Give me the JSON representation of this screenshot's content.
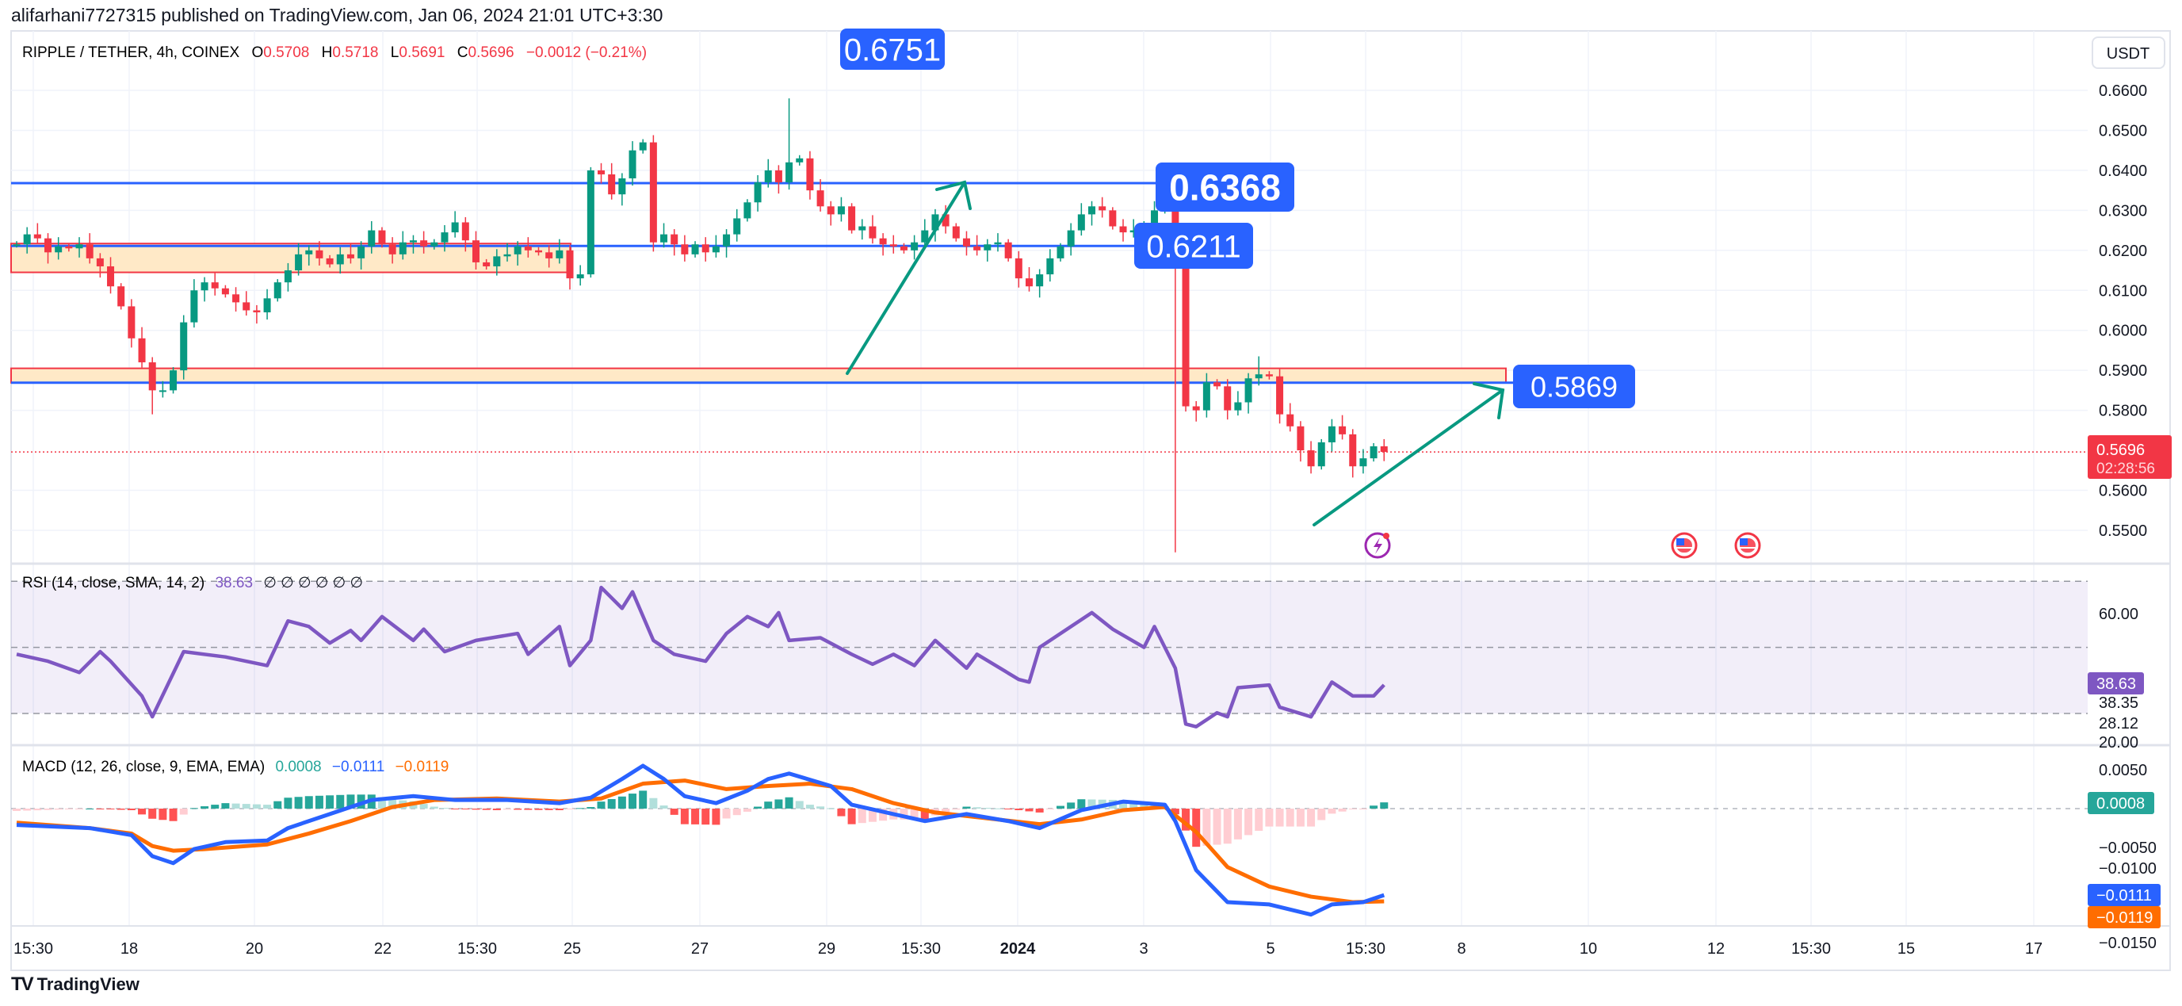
{
  "header": {
    "published": "alifarhani7727315 published on TradingView.com, Jan 06, 2024 21:01 UTC+3:30"
  },
  "legend": {
    "symbol": "RIPPLE / TETHER, 4h, COINEX",
    "o_label": "O",
    "o": "0.5708",
    "h_label": "H",
    "h": "0.5718",
    "l_label": "L",
    "l": "0.5691",
    "c_label": "C",
    "c": "0.5696",
    "change": "−0.0012 (−0.21%)"
  },
  "currency_button": "USDT",
  "last_price": {
    "value": "0.5696",
    "countdown": "02:28:56"
  },
  "annotations": {
    "labels": [
      "0.6751",
      "0.6368",
      "0.6211",
      "0.5869"
    ],
    "levels": [
      0.6368,
      0.6211,
      0.5869
    ],
    "zones": [
      [
        0.6145,
        0.6217
      ],
      [
        0.5869,
        0.5905
      ]
    ]
  },
  "price_axis": [
    "0.6600",
    "0.6500",
    "0.6400",
    "0.6300",
    "0.6200",
    "0.6100",
    "0.6000",
    "0.5900",
    "0.5800",
    "0.5600",
    "0.5500"
  ],
  "time_axis": [
    "15:30",
    "18",
    "20",
    "22",
    "15:30",
    "25",
    "27",
    "29",
    "15:30",
    "2024",
    "3",
    "5",
    "15:30",
    "8",
    "10",
    "12",
    "15:30",
    "15",
    "17"
  ],
  "rsi": {
    "title": "RSI (14, close, SMA, 14, 2)",
    "value": "38.63",
    "na": "∅ ∅ ∅ ∅ ∅ ∅",
    "axis": [
      "60.00",
      "38.35",
      "28.12",
      "20.00"
    ]
  },
  "macd": {
    "title": "MACD (12, 26, close, 9, EMA, EMA)",
    "hist": "0.0008",
    "macd": "−0.0111",
    "signal": "−0.0119",
    "axis": [
      "0.0050",
      "−0.0050",
      "−0.0100",
      "−0.0150"
    ]
  },
  "footer": {
    "brand": "TradingView",
    "logo": "TV"
  },
  "icons": [
    "lightning-event-icon",
    "us-flag-event-icon",
    "us-flag-event-icon"
  ],
  "colors": {
    "up": "#089981",
    "down": "#f23645",
    "level_line": "#2962ff",
    "label_bg": "#2962ff",
    "zone_fill": "#ffe9c7",
    "zone_border": "#f23645",
    "arrow": "#089981",
    "rsi": "#7e57c2",
    "macd": "#2962ff",
    "signal": "#ff6d00",
    "hist_up": "#26a69a",
    "hist_up_light": "#b2dfdb",
    "hist_down": "#ff5252",
    "hist_down_light": "#ffcdd2"
  },
  "chart_data": {
    "type": "candlestick",
    "interval": "4h",
    "ylim": [
      0.545,
      0.668
    ],
    "closes": [
      0.6215,
      0.624,
      0.623,
      0.6195,
      0.621,
      0.6205,
      0.6215,
      0.618,
      0.616,
      0.611,
      0.606,
      0.598,
      0.592,
      0.585,
      0.585,
      0.59,
      0.602,
      0.61,
      0.612,
      0.6105,
      0.609,
      0.607,
      0.605,
      0.6045,
      0.608,
      0.612,
      0.615,
      0.619,
      0.62,
      0.618,
      0.6165,
      0.619,
      0.618,
      0.621,
      0.625,
      0.6215,
      0.619,
      0.622,
      0.6225,
      0.621,
      0.622,
      0.6245,
      0.627,
      0.6225,
      0.617,
      0.616,
      0.6185,
      0.619,
      0.621,
      0.62,
      0.6195,
      0.618,
      0.62,
      0.613,
      0.614,
      0.64,
      0.639,
      0.634,
      0.638,
      0.645,
      0.647,
      0.622,
      0.624,
      0.6215,
      0.619,
      0.6215,
      0.6195,
      0.621,
      0.624,
      0.628,
      0.632,
      0.637,
      0.64,
      0.637,
      0.642,
      0.643,
      0.635,
      0.631,
      0.629,
      0.631,
      0.625,
      0.626,
      0.623,
      0.6215,
      0.621,
      0.62,
      0.622,
      0.625,
      0.629,
      0.626,
      0.623,
      0.621,
      0.62,
      0.6215,
      0.622,
      0.618,
      0.613,
      0.611,
      0.614,
      0.618,
      0.621,
      0.625,
      0.629,
      0.631,
      0.63,
      0.626,
      0.6245,
      0.625,
      0.626,
      0.63,
      0.633,
      0.621,
      0.581,
      0.58,
      0.587,
      0.586,
      0.58,
      0.582,
      0.588,
      0.589,
      0.5885,
      0.579,
      0.576,
      0.57,
      0.566,
      0.572,
      0.576,
      0.574,
      0.566,
      0.568,
      0.571,
      0.5696
    ],
    "wick_extremes": [
      {
        "index": 13,
        "low": 0.579
      },
      {
        "index": 74,
        "high": 0.658
      },
      {
        "index": 111,
        "low": 0.5445
      },
      {
        "index": 119,
        "high": 0.5935
      }
    ],
    "rsi_points": [
      [
        0,
        47.9
      ],
      [
        3,
        45.8
      ],
      [
        6,
        42.4
      ],
      [
        8,
        48.7
      ],
      [
        9,
        45.8
      ],
      [
        12,
        35.3
      ],
      [
        13,
        29.0
      ],
      [
        16,
        48.7
      ],
      [
        20,
        47.1
      ],
      [
        24,
        44.5
      ],
      [
        26,
        58.0
      ],
      [
        28,
        56.3
      ],
      [
        30,
        51.3
      ],
      [
        32,
        55.1
      ],
      [
        33,
        52.1
      ],
      [
        35,
        59.3
      ],
      [
        38,
        52.1
      ],
      [
        39,
        55.5
      ],
      [
        41,
        48.7
      ],
      [
        44,
        52.1
      ],
      [
        48,
        54.2
      ],
      [
        49,
        47.9
      ],
      [
        52,
        56.3
      ],
      [
        53,
        44.5
      ],
      [
        55,
        52.1
      ],
      [
        56,
        68.1
      ],
      [
        58,
        61.8
      ],
      [
        59,
        66.8
      ],
      [
        61,
        52.1
      ],
      [
        63,
        47.9
      ],
      [
        66,
        45.8
      ],
      [
        68,
        54.2
      ],
      [
        70,
        59.3
      ],
      [
        72,
        56.3
      ],
      [
        73,
        60.5
      ],
      [
        74,
        52.1
      ],
      [
        77,
        52.9
      ],
      [
        80,
        47.9
      ],
      [
        82,
        44.9
      ],
      [
        84,
        47.9
      ],
      [
        86,
        44.5
      ],
      [
        88,
        52.1
      ],
      [
        91,
        43.7
      ],
      [
        92,
        47.9
      ],
      [
        96,
        40.3
      ],
      [
        97,
        39.5
      ],
      [
        98,
        50.0
      ],
      [
        100,
        54.2
      ],
      [
        103,
        60.5
      ],
      [
        105,
        55.5
      ],
      [
        108,
        50.0
      ],
      [
        109,
        56.3
      ],
      [
        111,
        43.7
      ],
      [
        112,
        26.8
      ],
      [
        113,
        26.0
      ],
      [
        115,
        30.2
      ],
      [
        116,
        29.0
      ],
      [
        117,
        37.8
      ],
      [
        120,
        38.6
      ],
      [
        121,
        31.9
      ],
      [
        124,
        29.0
      ],
      [
        126,
        39.5
      ],
      [
        128,
        35.3
      ],
      [
        130,
        35.3
      ],
      [
        131,
        38.63
      ]
    ],
    "rsi_bands": [
      70,
      50,
      30
    ],
    "macd_points": [
      [
        0,
        -0.0021
      ],
      [
        7,
        -0.0025
      ],
      [
        11,
        -0.0034
      ],
      [
        13,
        -0.0061
      ],
      [
        15,
        -0.007
      ],
      [
        17,
        -0.0052
      ],
      [
        20,
        -0.0043
      ],
      [
        24,
        -0.0041
      ],
      [
        26,
        -0.0025
      ],
      [
        30,
        -0.0007
      ],
      [
        34,
        0.0011
      ],
      [
        38,
        0.0016
      ],
      [
        42,
        0.0011
      ],
      [
        47,
        0.0011
      ],
      [
        52,
        0.0007
      ],
      [
        55,
        0.0014
      ],
      [
        58,
        0.0038
      ],
      [
        60,
        0.0055
      ],
      [
        62,
        0.0038
      ],
      [
        64,
        0.0016
      ],
      [
        67,
        0.0007
      ],
      [
        70,
        0.0023
      ],
      [
        72,
        0.0038
      ],
      [
        74,
        0.0045
      ],
      [
        78,
        0.0029
      ],
      [
        80,
        0.0005
      ],
      [
        84,
        -0.0007
      ],
      [
        87,
        -0.0016
      ],
      [
        91,
        -0.0007
      ],
      [
        95,
        -0.0016
      ],
      [
        98,
        -0.0025
      ],
      [
        102,
        -0.0002
      ],
      [
        106,
        0.0009
      ],
      [
        110,
        0.0005
      ],
      [
        111,
        -0.0016
      ],
      [
        113,
        -0.0079
      ],
      [
        116,
        -0.012
      ],
      [
        120,
        -0.0123
      ],
      [
        124,
        -0.0136
      ],
      [
        126,
        -0.0123
      ],
      [
        129,
        -0.012
      ],
      [
        131,
        -0.0111
      ]
    ],
    "signal_points": [
      [
        0,
        -0.0018
      ],
      [
        7,
        -0.0025
      ],
      [
        11,
        -0.0032
      ],
      [
        13,
        -0.0048
      ],
      [
        15,
        -0.0054
      ],
      [
        18,
        -0.0052
      ],
      [
        24,
        -0.0046
      ],
      [
        28,
        -0.0032
      ],
      [
        32,
        -0.0016
      ],
      [
        36,
        0.0002
      ],
      [
        40,
        0.0011
      ],
      [
        46,
        0.0013
      ],
      [
        52,
        0.0009
      ],
      [
        56,
        0.0013
      ],
      [
        60,
        0.0032
      ],
      [
        64,
        0.0036
      ],
      [
        68,
        0.0025
      ],
      [
        72,
        0.0029
      ],
      [
        76,
        0.0032
      ],
      [
        80,
        0.0025
      ],
      [
        84,
        0.0007
      ],
      [
        88,
        -0.0005
      ],
      [
        94,
        -0.0014
      ],
      [
        98,
        -0.002
      ],
      [
        102,
        -0.0014
      ],
      [
        106,
        -0.0002
      ],
      [
        110,
        0.0002
      ],
      [
        113,
        -0.003
      ],
      [
        116,
        -0.0075
      ],
      [
        120,
        -0.01
      ],
      [
        124,
        -0.0113
      ],
      [
        128,
        -0.012
      ],
      [
        131,
        -0.0119
      ]
    ]
  }
}
